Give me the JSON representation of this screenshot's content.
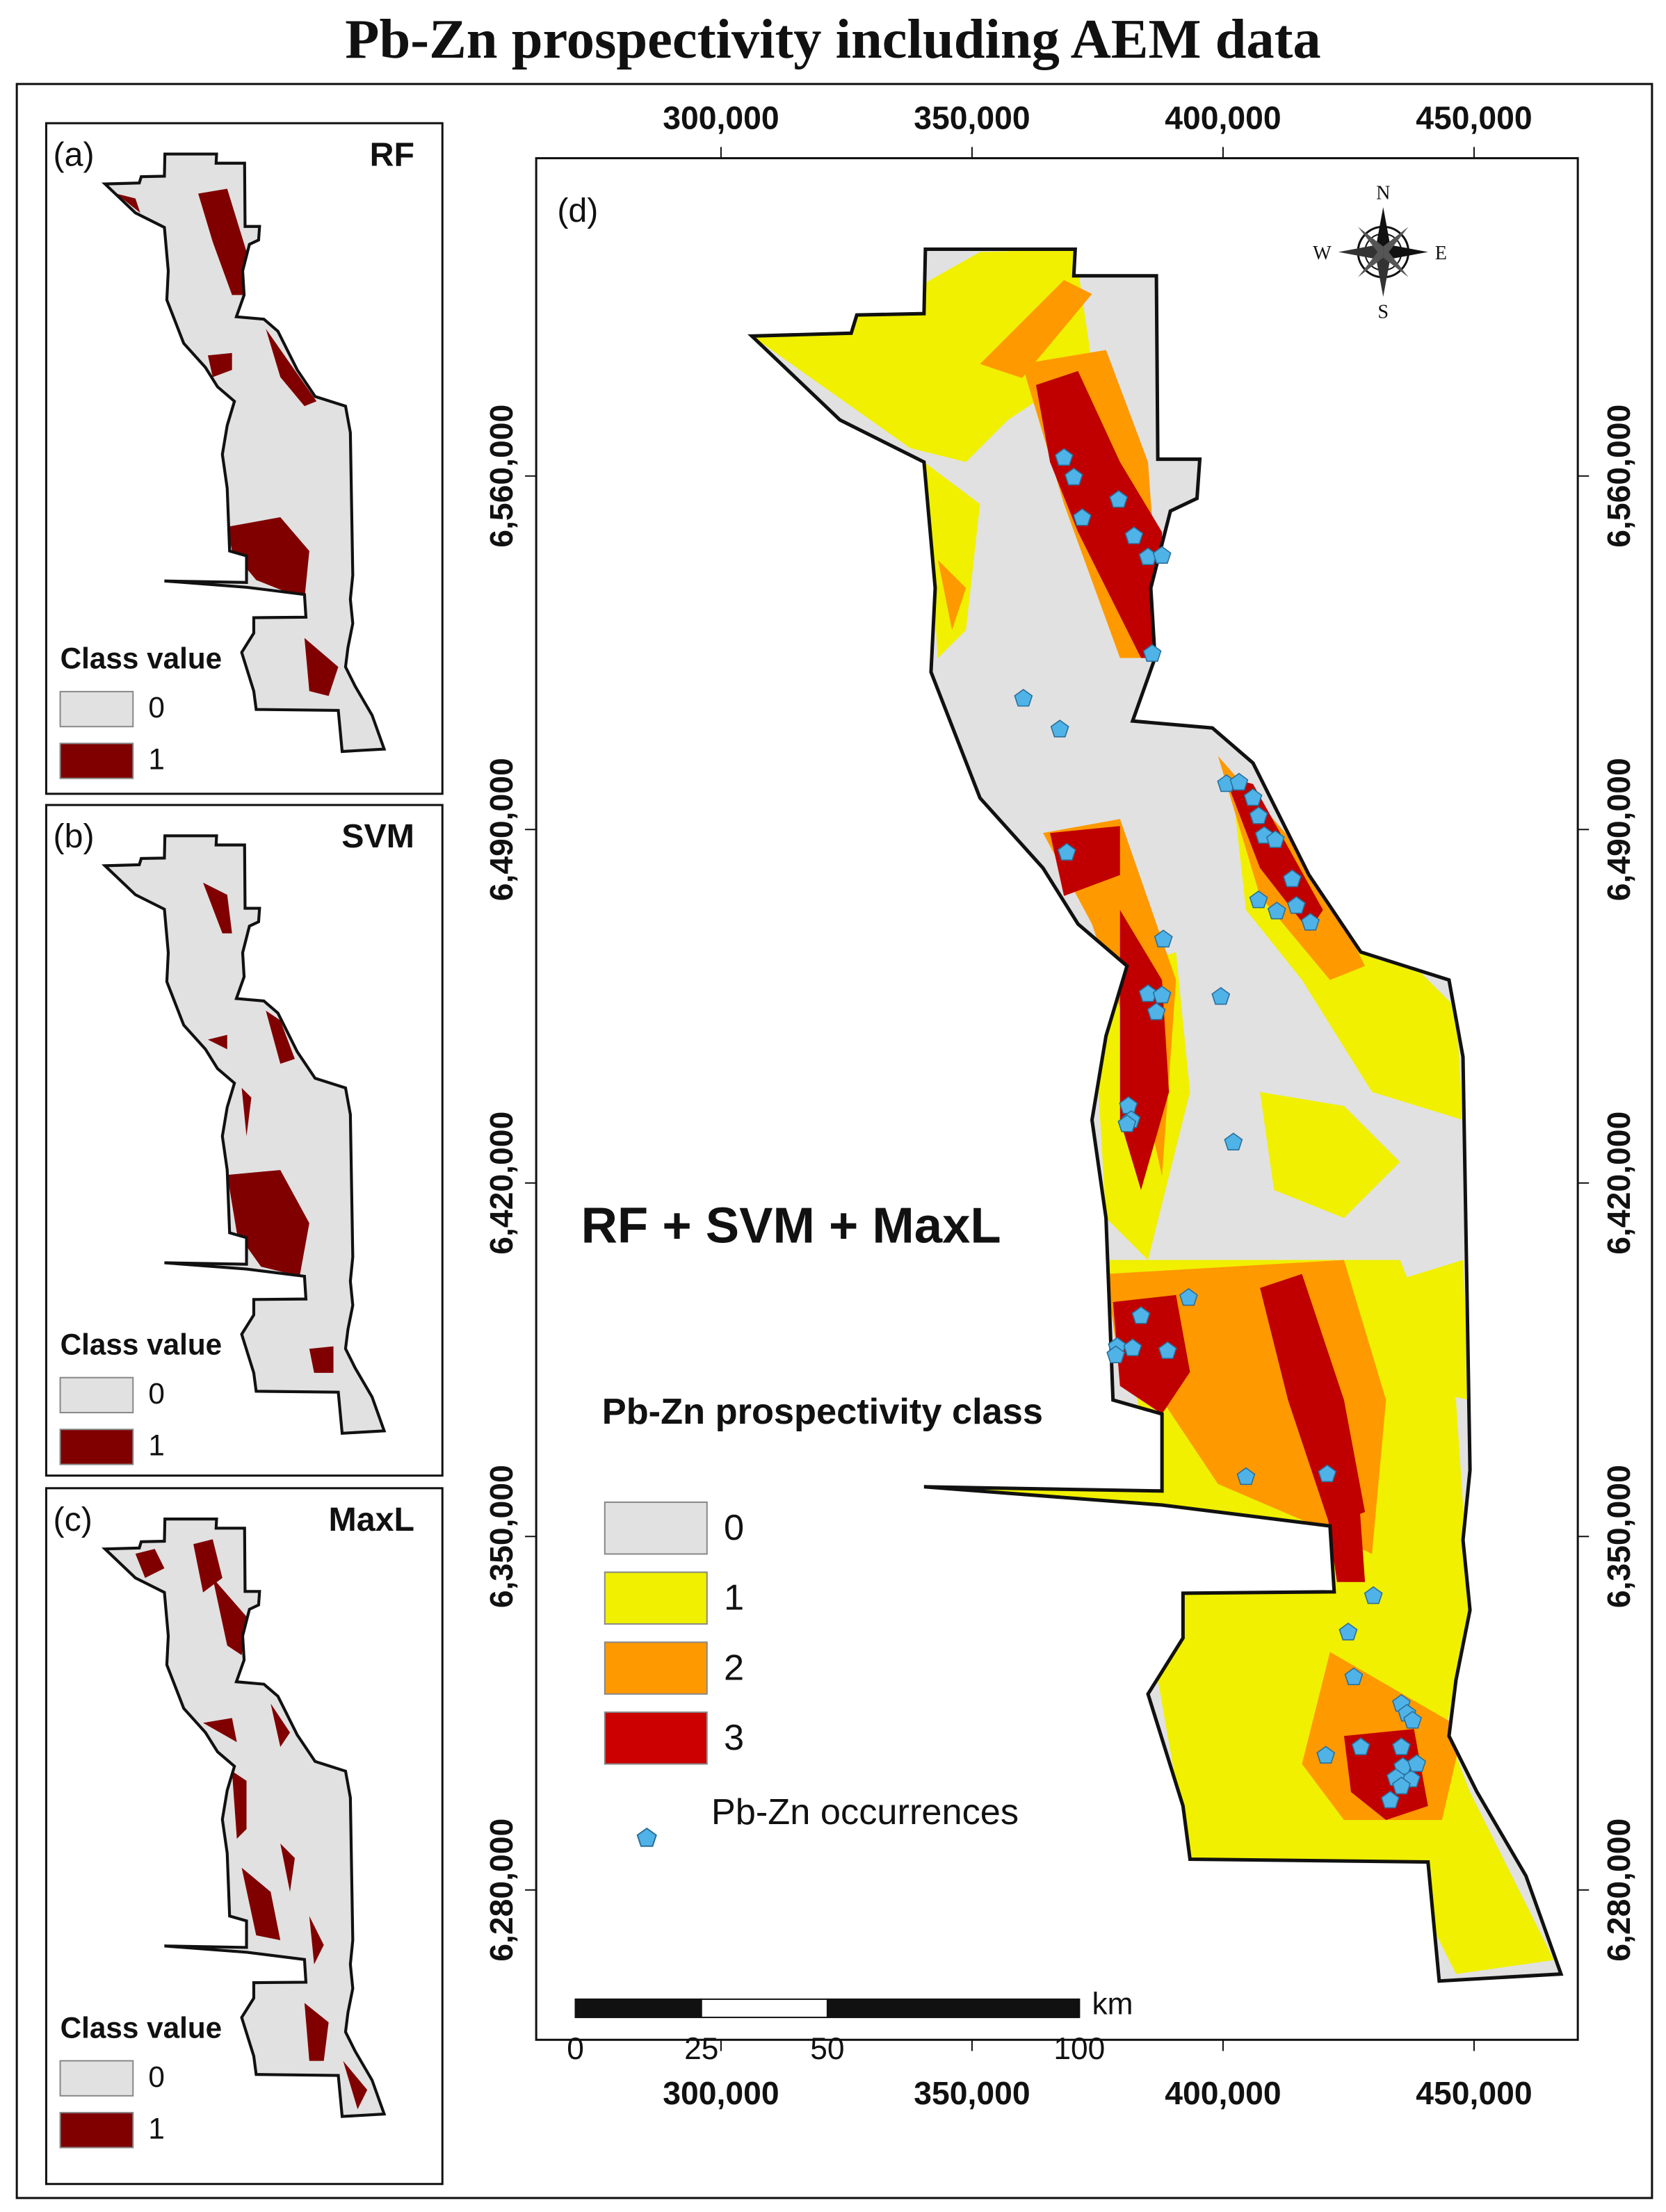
{
  "title": "Pb-Zn prospectivity including AEM data",
  "panels": [
    {
      "label": "(a)",
      "method": "RF",
      "legend": {
        "title": "Class value",
        "classes": [
          "0",
          "1"
        ]
      }
    },
    {
      "label": "(b)",
      "method": "SVM",
      "legend": {
        "title": "Class value",
        "classes": [
          "0",
          "1"
        ]
      }
    },
    {
      "label": "(c)",
      "method": "MaxL",
      "legend": {
        "title": "Class value",
        "classes": [
          "0",
          "1"
        ]
      }
    }
  ],
  "main_map": {
    "label": "(d)",
    "x_ticks": [
      "300,000",
      "350,000",
      "400,000",
      "450,000"
    ],
    "y_ticks": [
      "6,560,000",
      "6,490,000",
      "6,420,000",
      "6,350,000",
      "6,280,000"
    ],
    "overlay_text": "RF + SVM + MaxL",
    "legend": {
      "title": "Pb-Zn prospectivity class",
      "classes": [
        "0",
        "1",
        "2",
        "3"
      ],
      "occurrences": "Pb-Zn occurrences"
    },
    "scale_bar": {
      "labels": [
        "0",
        "25",
        "50",
        "100"
      ],
      "unit": "km"
    },
    "compass": {
      "north": "N",
      "east": "E",
      "south": "S",
      "west": "W"
    }
  }
}
